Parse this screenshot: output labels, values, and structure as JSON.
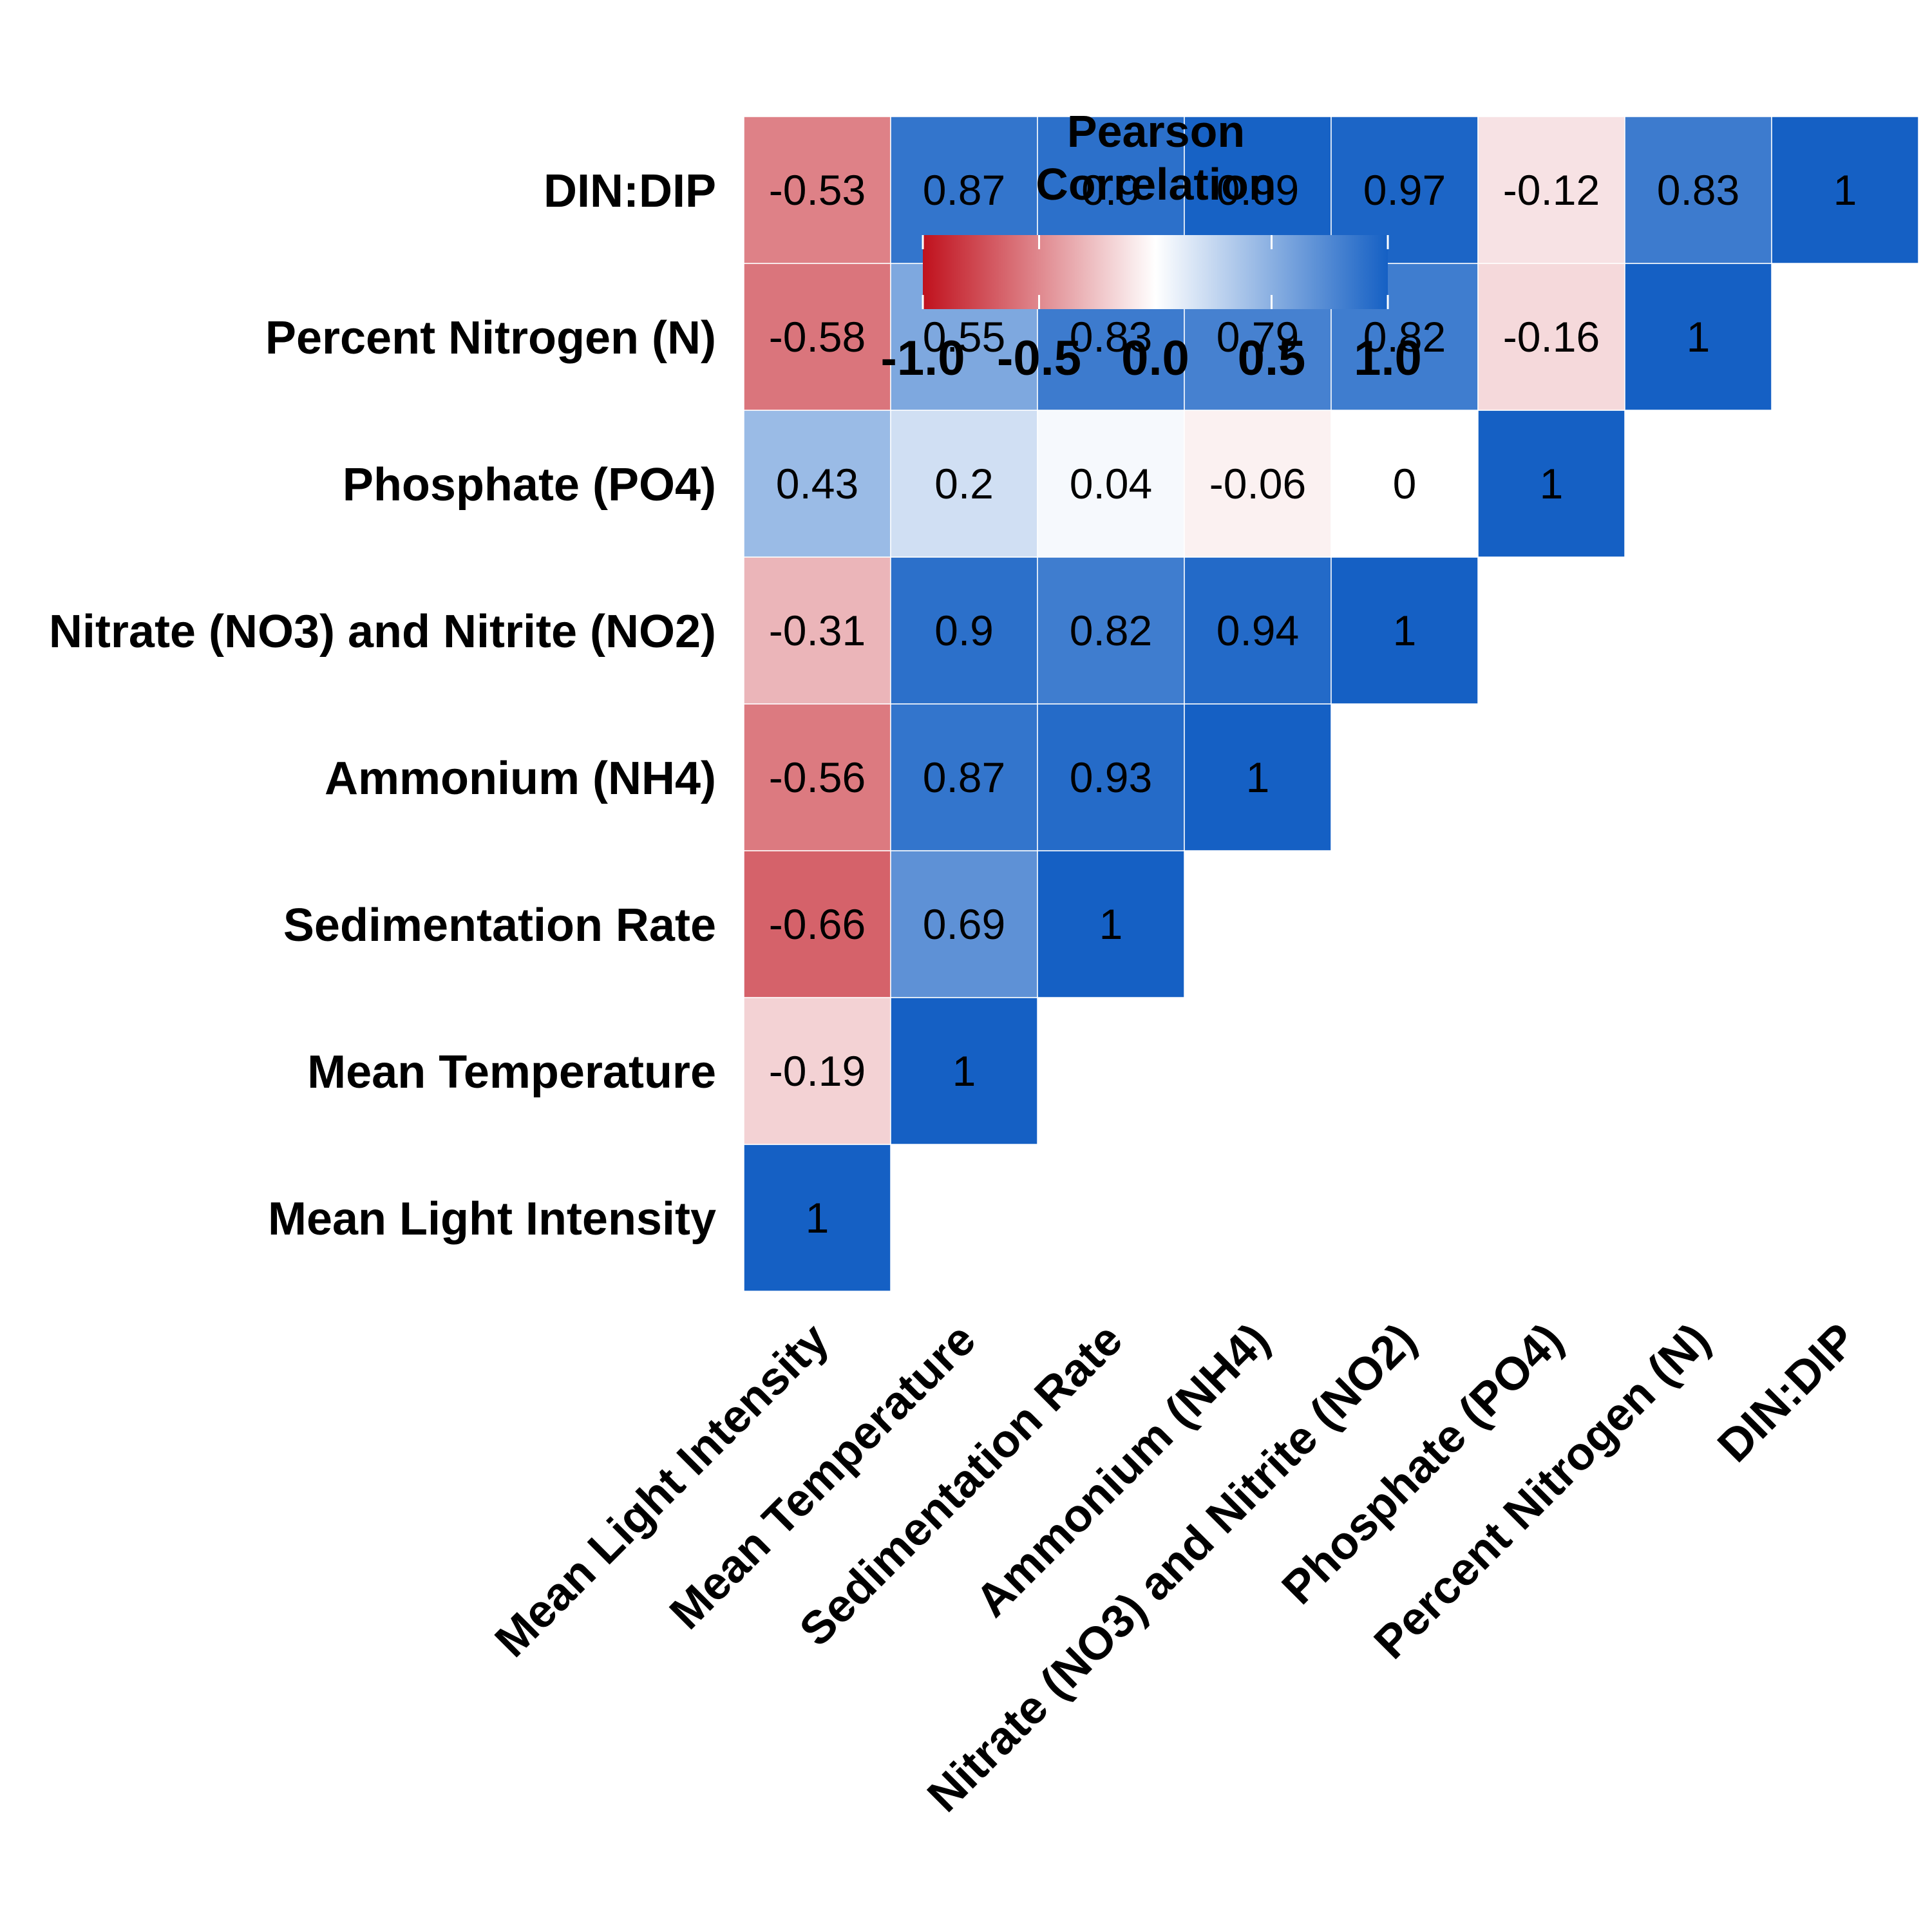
{
  "chart_data": {
    "type": "heatmap",
    "variables": [
      "Mean Light Intensity",
      "Mean Temperature",
      "Sedimentation Rate",
      "Ammonium (NH4)",
      "Nitrate (NO3) and Nitrite (NO2)",
      "Phosphate (PO4)",
      "Percent Nitrogen (N)",
      "DIN:DIP"
    ],
    "layout": "lower-triangle",
    "correlations": [
      [
        1,
        -0.19,
        -0.66,
        -0.56,
        -0.31,
        0.43,
        -0.58,
        -0.53
      ],
      [
        -0.19,
        1,
        0.69,
        0.87,
        0.9,
        0.2,
        0.55,
        0.87
      ],
      [
        -0.66,
        0.69,
        1,
        0.93,
        0.82,
        0.04,
        0.83,
        0.9
      ],
      [
        -0.56,
        0.87,
        0.93,
        1,
        0.94,
        -0.06,
        0.79,
        0.99
      ],
      [
        -0.31,
        0.9,
        0.82,
        0.94,
        1,
        0,
        0.82,
        0.97
      ],
      [
        0.43,
        0.2,
        0.04,
        -0.06,
        0,
        1,
        -0.16,
        -0.12
      ],
      [
        -0.58,
        0.55,
        0.83,
        0.79,
        0.82,
        -0.16,
        1,
        0.83
      ],
      [
        -0.53,
        0.87,
        0.9,
        0.99,
        0.97,
        -0.12,
        0.83,
        1
      ]
    ],
    "legend": {
      "title_line1": "Pearson",
      "title_line2": "Correlation",
      "range": [
        -1,
        1
      ],
      "ticks": [
        "-1.0",
        "-0.5",
        "0.0",
        "0.5",
        "1.0"
      ],
      "placement": "top-center"
    },
    "colors": {
      "low": "#c0111d",
      "mid": "#ffffff",
      "high": "#1560c4"
    },
    "grid": false
  }
}
